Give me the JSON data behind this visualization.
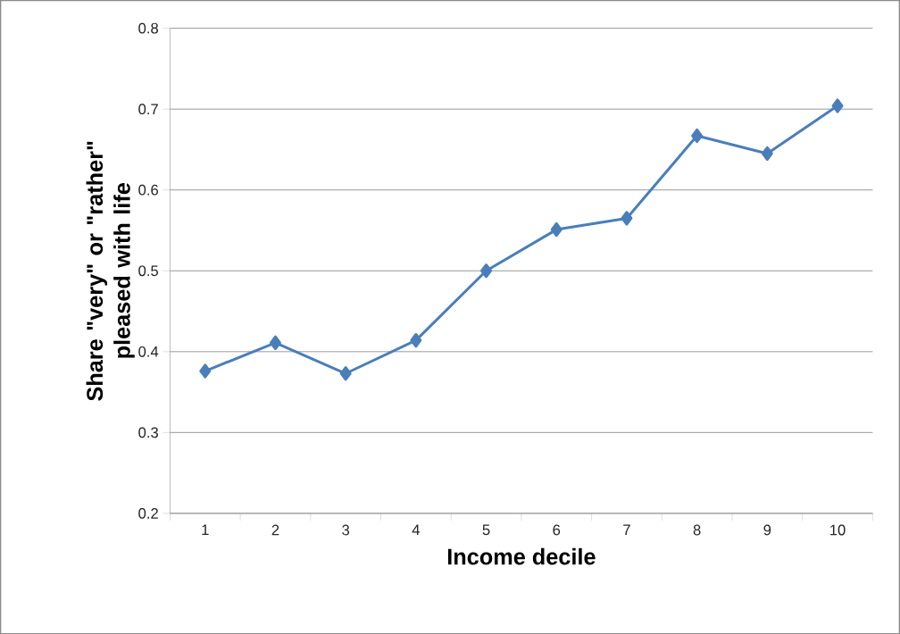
{
  "chart_data": {
    "type": "line",
    "xlabel": "Income decile",
    "ylabel": "Share \"very\" or \"rather\" pleased with life",
    "categories": [
      "1",
      "2",
      "3",
      "4",
      "5",
      "6",
      "7",
      "8",
      "9",
      "10"
    ],
    "series": [
      {
        "color": "#4a7ebb",
        "values": [
          0.376,
          0.411,
          0.373,
          0.414,
          0.5,
          0.551,
          0.565,
          0.667,
          0.645,
          0.704
        ]
      }
    ],
    "ylim": [
      0.2,
      0.8
    ],
    "yticks": [
      0.2,
      0.3,
      0.4,
      0.5,
      0.6,
      0.7,
      0.8
    ],
    "grid": "y",
    "marker": "diamond",
    "line_style": "solid"
  }
}
